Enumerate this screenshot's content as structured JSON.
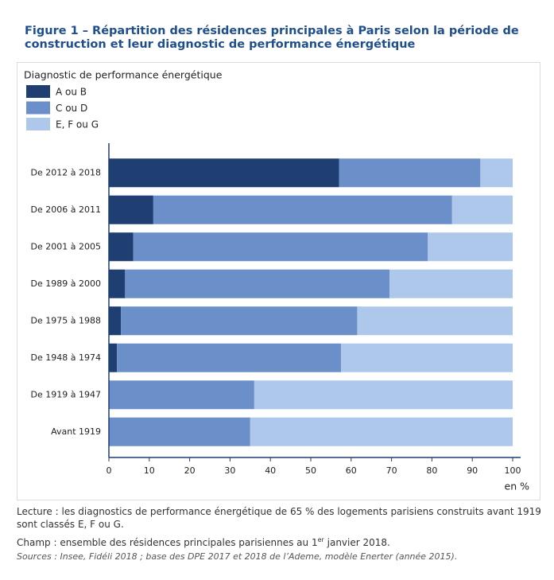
{
  "chart_data": {
    "type": "stacked_bar_horizontal",
    "title": "Figure 1 – Répartition des résidences principales à Paris selon la période de construction et leur diagnostic de performance énergétique",
    "legend_title": "Diagnostic de performance énergétique",
    "categories": [
      "De 2012 à 2018",
      "De 2006 à 2011",
      "De 2001 à 2005",
      "De 1989 à 2000",
      "De 1975 à 1988",
      "De 1948 à 1974",
      "De 1919 à 1947",
      "Avant 1919"
    ],
    "series": [
      {
        "name": "A ou B",
        "color": "#1f3f73",
        "values": [
          57,
          11,
          6,
          4,
          3,
          2,
          0,
          0
        ]
      },
      {
        "name": "C ou D",
        "color": "#6a8fc9",
        "values": [
          35,
          74,
          73,
          65.5,
          58.5,
          55.5,
          36,
          35
        ]
      },
      {
        "name": "E, F ou G",
        "color": "#aec8ec",
        "values": [
          8,
          15,
          21,
          30.5,
          38.5,
          42.5,
          64,
          65
        ]
      }
    ],
    "xlim": [
      0,
      100
    ],
    "xticks": [
      0,
      10,
      20,
      30,
      40,
      50,
      60,
      70,
      80,
      90,
      100
    ],
    "x_label": "en %"
  },
  "notes": {
    "lecture": "Lecture : les diagnostics de performance énergétique de 65 % des logements parisiens construits avant 1919 sont classés E, F ou G.",
    "champ_before": "Champ : ensemble des résidences principales parisiennes au 1",
    "champ_sup": "er",
    "champ_after": " janvier 2018.",
    "sources": "Sources : Insee, Fidéli 2018 ; base des DPE 2017 et 2018 de l’Ademe, modèle Enerter (année 2015)."
  }
}
